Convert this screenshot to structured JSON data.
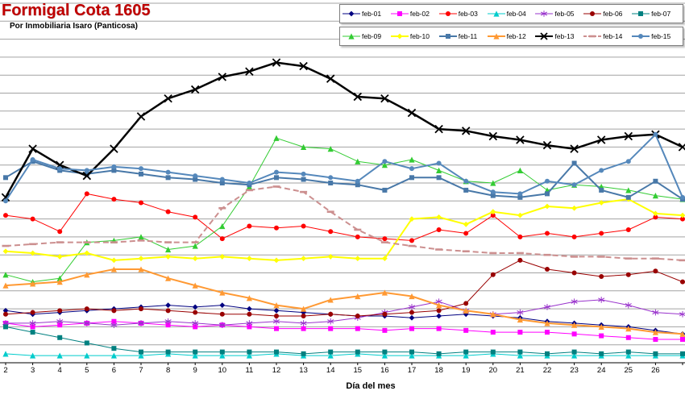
{
  "header": {
    "title": "Formigal Cota 1605",
    "subtitle": "Por Inmobiliaria Isaro (Panticosa)"
  },
  "chart_data": {
    "type": "line",
    "xlabel": "Día del mes",
    "x": [
      2,
      3,
      4,
      5,
      6,
      7,
      8,
      9,
      10,
      11,
      12,
      13,
      14,
      15,
      16,
      17,
      18,
      19,
      20,
      21,
      22,
      23,
      24,
      25,
      26,
      27
    ],
    "x_ticks": [
      2,
      3,
      4,
      5,
      6,
      7,
      8,
      9,
      10,
      11,
      12,
      13,
      14,
      15,
      16,
      17,
      18,
      19,
      20,
      21,
      22,
      23,
      24,
      25,
      26
    ],
    "ylim": [
      0,
      200
    ],
    "grid_step": 10,
    "grid_color": "#a3a3a3",
    "axis_color": "#000000",
    "background_color": "#ffffff",
    "legend_position": "top-right",
    "y_axis_labels_visible": false,
    "series": [
      {
        "name": "feb-01",
        "color": "#000080",
        "marker": "diamond",
        "width": 1,
        "values": [
          29,
          27,
          28,
          29,
          30,
          31,
          32,
          31,
          32,
          30,
          29,
          28,
          27,
          26,
          26,
          25,
          26,
          27,
          26,
          25,
          23,
          22,
          21,
          20,
          18,
          16
        ]
      },
      {
        "name": "feb-02",
        "color": "#ff00ff",
        "marker": "square",
        "width": 1,
        "values": [
          22,
          20,
          21,
          22,
          23,
          22,
          21,
          20,
          21,
          20,
          19,
          19,
          19,
          19,
          18,
          19,
          19,
          18,
          17,
          17,
          17,
          16,
          15,
          14,
          13,
          13
        ]
      },
      {
        "name": "feb-03",
        "color": "#ff0000",
        "marker": "circle",
        "width": 1,
        "values": [
          82,
          80,
          73,
          94,
          91,
          89,
          84,
          81,
          69,
          76,
          75,
          76,
          73,
          70,
          69,
          68,
          74,
          72,
          82,
          70,
          72,
          70,
          72,
          74,
          81,
          80
        ]
      },
      {
        "name": "feb-04",
        "color": "#00cccc",
        "marker": "triangle",
        "width": 1,
        "values": [
          5,
          4,
          4,
          4,
          4,
          4,
          5,
          4,
          4,
          4,
          5,
          4,
          4,
          5,
          4,
          4,
          4,
          4,
          5,
          4,
          4,
          4,
          4,
          4,
          4,
          4
        ]
      },
      {
        "name": "feb-05",
        "color": "#9933cc",
        "marker": "asterisk",
        "width": 1,
        "values": [
          22,
          22,
          23,
          22,
          21,
          22,
          23,
          22,
          21,
          22,
          23,
          22,
          23,
          25,
          28,
          31,
          34,
          29,
          27,
          28,
          31,
          34,
          35,
          32,
          28,
          27
        ]
      },
      {
        "name": "feb-06",
        "color": "#990000",
        "marker": "circle",
        "width": 1,
        "values": [
          27,
          28,
          29,
          30,
          29,
          30,
          29,
          28,
          27,
          27,
          26,
          26,
          27,
          26,
          27,
          28,
          29,
          33,
          49,
          57,
          52,
          50,
          48,
          49,
          51,
          45
        ]
      },
      {
        "name": "feb-07",
        "color": "#008080",
        "marker": "square",
        "width": 1,
        "values": [
          20,
          17,
          14,
          11,
          8,
          6,
          6,
          6,
          6,
          6,
          6,
          5,
          6,
          6,
          6,
          6,
          5,
          6,
          6,
          6,
          5,
          6,
          5,
          6,
          5,
          5
        ]
      },
      {
        "name": "feb-09",
        "color": "#33cc33",
        "marker": "triangle",
        "width": 1,
        "values": [
          49,
          45,
          47,
          67,
          68,
          70,
          63,
          65,
          76,
          98,
          125,
          120,
          119,
          112,
          110,
          113,
          107,
          101,
          100,
          107,
          96,
          99,
          98,
          96,
          93,
          91
        ]
      },
      {
        "name": "feb-10",
        "color": "#ffff00",
        "marker": "diamond",
        "width": 2,
        "values": [
          62,
          61,
          59,
          61,
          57,
          58,
          59,
          58,
          59,
          58,
          57,
          58,
          59,
          58,
          58,
          80,
          81,
          77,
          84,
          82,
          87,
          86,
          89,
          91,
          83,
          82
        ]
      },
      {
        "name": "feb-11",
        "color": "#4878a8",
        "marker": "square",
        "width": 2,
        "values": [
          103,
          112,
          107,
          105,
          107,
          105,
          103,
          102,
          100,
          99,
          103,
          102,
          100,
          99,
          96,
          103,
          103,
          96,
          93,
          92,
          94,
          111,
          96,
          92,
          101,
          91
        ]
      },
      {
        "name": "feb-12",
        "color": "#ff9933",
        "marker": "triangle",
        "width": 2,
        "values": [
          43,
          44,
          45,
          49,
          52,
          52,
          47,
          43,
          39,
          36,
          32,
          30,
          35,
          37,
          39,
          37,
          32,
          29,
          27,
          24,
          22,
          21,
          20,
          19,
          17,
          16
        ]
      },
      {
        "name": "feb-13",
        "color": "#000000",
        "marker": "x",
        "width": 2.5,
        "values": [
          92,
          119,
          110,
          104,
          119,
          137,
          147,
          152,
          159,
          162,
          167,
          165,
          158,
          148,
          147,
          139,
          130,
          129,
          126,
          124,
          121,
          119,
          124,
          126,
          127,
          120
        ]
      },
      {
        "name": "feb-14",
        "color": "#cc8f8f",
        "marker": "dash",
        "width": 2,
        "dash": "7 4",
        "values": [
          65,
          66,
          67,
          67,
          67,
          68,
          67,
          67,
          86,
          96,
          98,
          95,
          84,
          74,
          67,
          65,
          63,
          62,
          61,
          61,
          60,
          59,
          59,
          58,
          58,
          57
        ]
      },
      {
        "name": "feb-15",
        "color": "#5588bb",
        "marker": "circle",
        "width": 2,
        "values": [
          90,
          113,
          108,
          107,
          109,
          108,
          106,
          104,
          102,
          100,
          106,
          105,
          103,
          101,
          112,
          108,
          111,
          101,
          95,
          94,
          101,
          99,
          107,
          112,
          127,
          92
        ]
      }
    ]
  }
}
